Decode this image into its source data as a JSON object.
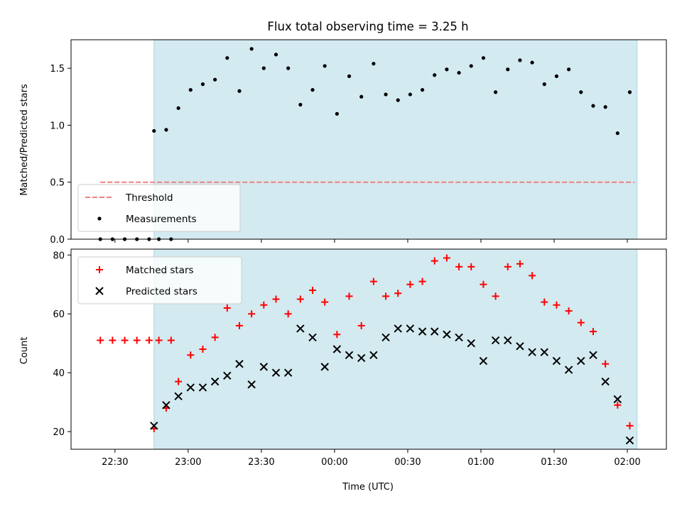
{
  "chart_data": [
    {
      "type": "scatter",
      "title": "Flux total observing time = 3.25 h",
      "ylabel": "Matched/Predicted stars",
      "xlabel": "",
      "ylim": [
        0,
        1.75
      ],
      "yticks": [
        0.0,
        0.5,
        1.0,
        1.5
      ],
      "ytick_labels": [
        "0.0",
        "0.5",
        "1.0",
        "1.5"
      ],
      "xlim": [
        "22:12",
        "02:16"
      ],
      "shaded_interval": {
        "start": "22:46",
        "end": "02:04",
        "color": "#d3eaf0"
      },
      "legend_position": "lower-left",
      "threshold": {
        "name": "Threshold",
        "value": 0.5,
        "x_start": "22:24",
        "x_end": "02:03",
        "color": "#f08080",
        "style": "dashed"
      },
      "series": [
        {
          "name": "Measurements",
          "color": "#000000",
          "marker": "dot",
          "points": [
            [
              "22:24",
              0.0
            ],
            [
              "22:29",
              0.0
            ],
            [
              "22:34",
              0.0
            ],
            [
              "22:39",
              0.0
            ],
            [
              "22:44",
              0.0
            ],
            [
              "22:48",
              0.0
            ],
            [
              "22:53",
              0.0
            ],
            [
              "22:46",
              0.95
            ],
            [
              "22:51",
              0.96
            ],
            [
              "22:56",
              1.15
            ],
            [
              "23:01",
              1.31
            ],
            [
              "23:06",
              1.36
            ],
            [
              "23:11",
              1.4
            ],
            [
              "23:16",
              1.59
            ],
            [
              "23:21",
              1.3
            ],
            [
              "23:26",
              1.67
            ],
            [
              "23:31",
              1.5
            ],
            [
              "23:36",
              1.62
            ],
            [
              "23:41",
              1.5
            ],
            [
              "23:46",
              1.18
            ],
            [
              "23:51",
              1.31
            ],
            [
              "23:56",
              1.52
            ],
            [
              "00:01",
              1.1
            ],
            [
              "00:06",
              1.43
            ],
            [
              "00:11",
              1.25
            ],
            [
              "00:16",
              1.54
            ],
            [
              "00:21",
              1.27
            ],
            [
              "00:26",
              1.22
            ],
            [
              "00:31",
              1.27
            ],
            [
              "00:36",
              1.31
            ],
            [
              "00:41",
              1.44
            ],
            [
              "00:46",
              1.49
            ],
            [
              "00:51",
              1.46
            ],
            [
              "00:56",
              1.52
            ],
            [
              "01:01",
              1.59
            ],
            [
              "01:06",
              1.29
            ],
            [
              "01:11",
              1.49
            ],
            [
              "01:16",
              1.57
            ],
            [
              "01:21",
              1.55
            ],
            [
              "01:26",
              1.36
            ],
            [
              "01:31",
              1.43
            ],
            [
              "01:36",
              1.49
            ],
            [
              "01:41",
              1.29
            ],
            [
              "01:46",
              1.17
            ],
            [
              "01:51",
              1.16
            ],
            [
              "01:56",
              0.93
            ],
            [
              "02:01",
              1.29
            ]
          ]
        }
      ]
    },
    {
      "type": "scatter",
      "title": "",
      "ylabel": "Count",
      "xlabel": "Time (UTC)",
      "ylim": [
        14,
        82
      ],
      "yticks": [
        20,
        40,
        60,
        80
      ],
      "ytick_labels": [
        "20",
        "40",
        "60",
        "80"
      ],
      "xlim": [
        "22:12",
        "02:16"
      ],
      "xticks": [
        "22:30",
        "23:00",
        "23:30",
        "00:00",
        "00:30",
        "01:00",
        "01:30",
        "02:00"
      ],
      "shaded_interval": {
        "start": "22:46",
        "end": "02:04",
        "color": "#d3eaf0"
      },
      "legend_position": "upper-left",
      "series": [
        {
          "name": "Matched stars",
          "color": "#ff0000",
          "marker": "plus",
          "points": [
            [
              "22:24",
              51
            ],
            [
              "22:29",
              51
            ],
            [
              "22:34",
              51
            ],
            [
              "22:39",
              51
            ],
            [
              "22:44",
              51
            ],
            [
              "22:48",
              51
            ],
            [
              "22:53",
              51
            ],
            [
              "22:46",
              21
            ],
            [
              "22:51",
              28
            ],
            [
              "22:56",
              37
            ],
            [
              "23:01",
              46
            ],
            [
              "23:06",
              48
            ],
            [
              "23:11",
              52
            ],
            [
              "23:16",
              62
            ],
            [
              "23:21",
              56
            ],
            [
              "23:26",
              60
            ],
            [
              "23:31",
              63
            ],
            [
              "23:36",
              65
            ],
            [
              "23:41",
              60
            ],
            [
              "23:46",
              65
            ],
            [
              "23:51",
              68
            ],
            [
              "23:56",
              64
            ],
            [
              "00:01",
              53
            ],
            [
              "00:06",
              66
            ],
            [
              "00:11",
              56
            ],
            [
              "00:16",
              71
            ],
            [
              "00:21",
              66
            ],
            [
              "00:26",
              67
            ],
            [
              "00:31",
              70
            ],
            [
              "00:36",
              71
            ],
            [
              "00:41",
              78
            ],
            [
              "00:46",
              79
            ],
            [
              "00:51",
              76
            ],
            [
              "00:56",
              76
            ],
            [
              "01:01",
              70
            ],
            [
              "01:06",
              66
            ],
            [
              "01:11",
              76
            ],
            [
              "01:16",
              77
            ],
            [
              "01:21",
              73
            ],
            [
              "01:26",
              64
            ],
            [
              "01:31",
              63
            ],
            [
              "01:36",
              61
            ],
            [
              "01:41",
              57
            ],
            [
              "01:46",
              54
            ],
            [
              "01:51",
              43
            ],
            [
              "01:56",
              29
            ],
            [
              "02:01",
              22
            ]
          ]
        },
        {
          "name": "Predicted stars",
          "color": "#000000",
          "marker": "x",
          "points": [
            [
              "22:46",
              22
            ],
            [
              "22:51",
              29
            ],
            [
              "22:56",
              32
            ],
            [
              "23:01",
              35
            ],
            [
              "23:06",
              35
            ],
            [
              "23:11",
              37
            ],
            [
              "23:16",
              39
            ],
            [
              "23:21",
              43
            ],
            [
              "23:26",
              36
            ],
            [
              "23:31",
              42
            ],
            [
              "23:36",
              40
            ],
            [
              "23:41",
              40
            ],
            [
              "23:46",
              55
            ],
            [
              "23:51",
              52
            ],
            [
              "23:56",
              42
            ],
            [
              "00:01",
              48
            ],
            [
              "00:06",
              46
            ],
            [
              "00:11",
              45
            ],
            [
              "00:16",
              46
            ],
            [
              "00:21",
              52
            ],
            [
              "00:26",
              55
            ],
            [
              "00:31",
              55
            ],
            [
              "00:36",
              54
            ],
            [
              "00:41",
              54
            ],
            [
              "00:46",
              53
            ],
            [
              "00:51",
              52
            ],
            [
              "00:56",
              50
            ],
            [
              "01:01",
              44
            ],
            [
              "01:06",
              51
            ],
            [
              "01:11",
              51
            ],
            [
              "01:16",
              49
            ],
            [
              "01:21",
              47
            ],
            [
              "01:26",
              47
            ],
            [
              "01:31",
              44
            ],
            [
              "01:36",
              41
            ],
            [
              "01:41",
              44
            ],
            [
              "01:46",
              46
            ],
            [
              "01:51",
              37
            ],
            [
              "01:56",
              31
            ],
            [
              "02:01",
              17
            ]
          ]
        }
      ]
    }
  ]
}
